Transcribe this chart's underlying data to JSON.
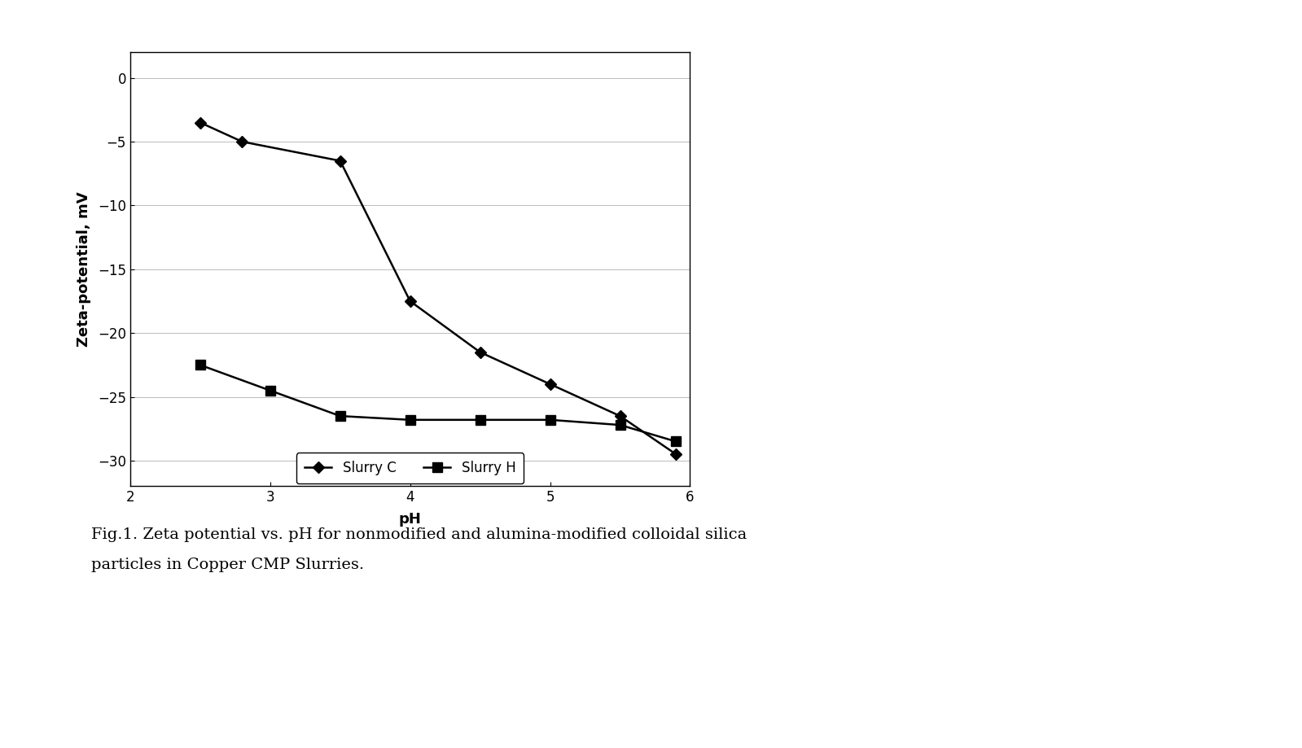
{
  "slurry_c_x": [
    2.5,
    2.8,
    3.5,
    4.0,
    4.5,
    5.0,
    5.5,
    5.9
  ],
  "slurry_c_y": [
    -3.5,
    -5.0,
    -6.5,
    -17.5,
    -21.5,
    -24.0,
    -26.5,
    -29.5
  ],
  "slurry_h_x": [
    2.5,
    3.0,
    3.5,
    4.0,
    4.5,
    5.0,
    5.5,
    5.9
  ],
  "slurry_h_y": [
    -22.5,
    -24.5,
    -26.5,
    -26.8,
    -26.8,
    -26.8,
    -27.2,
    -28.5
  ],
  "xlabel": "pH",
  "ylabel": "Zeta-potential, mV",
  "xlim": [
    2,
    6
  ],
  "ylim": [
    -32,
    2
  ],
  "xticks": [
    2,
    3,
    4,
    5,
    6
  ],
  "yticks": [
    0,
    -5,
    -10,
    -15,
    -20,
    -25,
    -30
  ],
  "line_color": "#000000",
  "legend_labels": [
    "Slurry C",
    "Slurry H"
  ],
  "caption_line1": "Fig.1. Zeta potential vs. pH for nonmodified and alumina-modified colloidal silica",
  "caption_line2": "particles in Copper CMP Slurries.",
  "axis_fontsize": 13,
  "tick_fontsize": 12,
  "legend_fontsize": 12,
  "caption_fontsize": 14
}
